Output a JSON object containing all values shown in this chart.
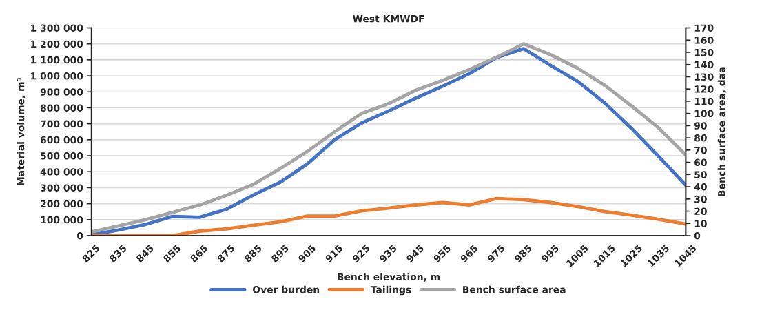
{
  "chart_data": {
    "type": "line",
    "title": "West KMWDF",
    "xlabel": "Bench elevation, m",
    "ylabel": "Material volume, m³",
    "y2label": "Bench surface area, daa",
    "categories": [
      "825",
      "835",
      "845",
      "855",
      "865",
      "875",
      "885",
      "895",
      "905",
      "915",
      "925",
      "935",
      "945",
      "955",
      "965",
      "975",
      "985",
      "995",
      "1005",
      "1015",
      "1025",
      "1035",
      "1045"
    ],
    "series": [
      {
        "name": "Over burden",
        "color": "#4472c4",
        "values": [
          5000,
          35000,
          70000,
          120000,
          115000,
          165000,
          255000,
          335000,
          450000,
          600000,
          705000,
          780000,
          860000,
          935000,
          1015000,
          1115000,
          1170000,
          1065000,
          965000,
          830000,
          670000,
          495000,
          315000
        ]
      },
      {
        "name": "Tailings",
        "color": "#ed7d31",
        "values": [
          0,
          0,
          0,
          0,
          28000,
          42000,
          65000,
          87000,
          122000,
          122000,
          155000,
          172000,
          192000,
          207000,
          192000,
          232000,
          225000,
          207000,
          182000,
          150000,
          128000,
          102000,
          73000
        ]
      },
      {
        "name": "Bench surface area",
        "color": "#a5a5a5",
        "axis": "y2",
        "values": [
          3,
          8,
          13,
          19,
          25,
          33,
          42,
          55,
          69,
          85,
          100,
          108,
          119,
          127,
          136,
          146,
          157,
          148,
          137,
          123,
          106,
          88,
          66
        ]
      }
    ],
    "ylim": [
      0,
      1300000
    ],
    "yticks": [
      0,
      {
        "value": 100000,
        "label": "100 000"
      },
      {
        "value": 200000,
        "label": "200 000"
      },
      {
        "value": 300000,
        "label": "300 000"
      },
      {
        "value": 400000,
        "label": "400 000"
      },
      {
        "value": 500000,
        "label": "500 000"
      },
      {
        "value": 600000,
        "label": "600 000"
      },
      {
        "value": 700000,
        "label": "700 000"
      },
      {
        "value": 800000,
        "label": "800 000"
      },
      {
        "value": 900000,
        "label": "900 000"
      },
      {
        "value": 1000000,
        "label": "1 000 000"
      },
      {
        "value": 1100000,
        "label": "1 100 000"
      },
      {
        "value": 1200000,
        "label": "1 200 000"
      },
      {
        "value": 1300000,
        "label": "1 300 000"
      }
    ],
    "y2lim": [
      0,
      170
    ],
    "y2ticks": [
      0,
      10,
      20,
      30,
      40,
      50,
      60,
      70,
      80,
      90,
      100,
      110,
      120,
      130,
      140,
      150,
      160,
      170
    ],
    "grid": "y",
    "legend": "bottom",
    "marker": "none",
    "line_style": "solid"
  }
}
